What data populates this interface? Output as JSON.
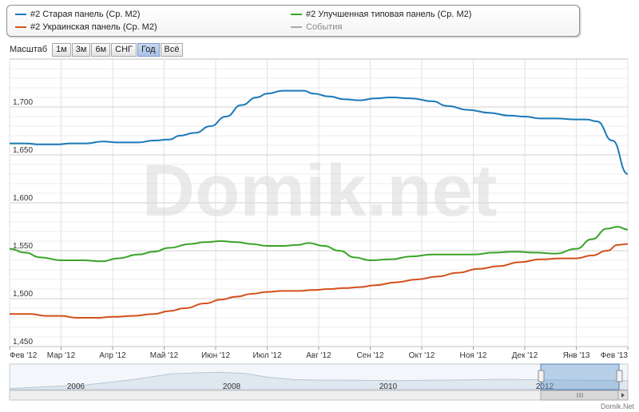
{
  "legend": {
    "items": [
      {
        "label": "#2 Старая панель (Ср. М2)",
        "color": "#1a7ab8"
      },
      {
        "label": "#2 Украинская панель (Ср. М2)",
        "color": "#d4501c"
      },
      {
        "label": "#2 Улучшенная типовая панель (Ср. М2)",
        "color": "#3aa328"
      },
      {
        "label": "События",
        "color": "#aaaaaa"
      }
    ]
  },
  "zoom": {
    "label": "Масштаб",
    "buttons": [
      "1м",
      "3м",
      "6м",
      "СНГ",
      "Год",
      "Всё"
    ],
    "active": "Год"
  },
  "watermark": "Domik.net",
  "credit": "Domik.Net",
  "chart_data": {
    "type": "line",
    "ylim": [
      1450,
      1750
    ],
    "yticks": [
      1450,
      1500,
      1550,
      1600,
      1650,
      1700
    ],
    "ytick_labels": [
      "1,450",
      "1,500",
      "1,550",
      "1,600",
      "1,650",
      "1,700"
    ],
    "xlim": [
      0,
      12
    ],
    "xtick_labels": [
      "Фев '12",
      "Мар '12",
      "Апр '12",
      "Май '12",
      "Июн '12",
      "Июл '12",
      "Авг '12",
      "Сен '12",
      "Окт '12",
      "Ноя '12",
      "Дек '12",
      "Янв '13",
      "Фев '13"
    ],
    "series": [
      {
        "name": "#2 Старая панель (Ср. М2)",
        "color": "#1a7ab8",
        "x": [
          0,
          0.3,
          0.6,
          0.9,
          1.2,
          1.5,
          1.8,
          2.1,
          2.5,
          2.8,
          3.1,
          3.3,
          3.6,
          3.9,
          4.2,
          4.5,
          4.8,
          5.0,
          5.3,
          5.5,
          5.7,
          5.9,
          6.2,
          6.5,
          6.8,
          7.1,
          7.4,
          7.8,
          8.2,
          8.5,
          8.9,
          9.3,
          9.7,
          10.0,
          10.3,
          10.6,
          11.0,
          11.2,
          11.4,
          11.7,
          12.0
        ],
        "values": [
          1662,
          1662,
          1661,
          1661,
          1662,
          1662,
          1664,
          1663,
          1663,
          1665,
          1666,
          1670,
          1673,
          1680,
          1690,
          1702,
          1710,
          1714,
          1717,
          1717,
          1717,
          1714,
          1711,
          1708,
          1707,
          1709,
          1710,
          1709,
          1706,
          1701,
          1697,
          1694,
          1691,
          1690,
          1688,
          1688,
          1687,
          1687,
          1685,
          1665,
          1630
        ]
      },
      {
        "name": "#2 Украинская панель (Ср. М2)",
        "color": "#d4501c",
        "x": [
          0,
          0.4,
          0.7,
          1.0,
          1.3,
          1.7,
          2.0,
          2.4,
          2.8,
          3.1,
          3.4,
          3.8,
          4.1,
          4.4,
          4.7,
          5.0,
          5.3,
          5.6,
          5.9,
          6.2,
          6.5,
          6.8,
          7.1,
          7.5,
          7.9,
          8.3,
          8.7,
          9.1,
          9.5,
          9.9,
          10.3,
          10.7,
          11.0,
          11.3,
          11.6,
          11.8,
          12.0
        ],
        "values": [
          1484,
          1484,
          1482,
          1482,
          1480,
          1480,
          1481,
          1482,
          1484,
          1487,
          1490,
          1495,
          1499,
          1502,
          1505,
          1507,
          1508,
          1508,
          1509,
          1510,
          1511,
          1512,
          1514,
          1517,
          1520,
          1523,
          1527,
          1531,
          1534,
          1538,
          1541,
          1542,
          1542,
          1545,
          1550,
          1556,
          1557
        ]
      },
      {
        "name": "#2 Улучшенная типовая панель (Ср. М2)",
        "color": "#3aa328",
        "x": [
          0,
          0.3,
          0.6,
          1.0,
          1.4,
          1.8,
          2.1,
          2.5,
          2.8,
          3.1,
          3.5,
          3.8,
          4.1,
          4.4,
          4.7,
          5.0,
          5.3,
          5.6,
          5.8,
          6.1,
          6.4,
          6.7,
          7.0,
          7.4,
          7.8,
          8.2,
          8.6,
          9.0,
          9.4,
          9.8,
          10.2,
          10.6,
          11.0,
          11.3,
          11.6,
          11.8,
          12.0
        ],
        "values": [
          1552,
          1548,
          1543,
          1540,
          1540,
          1539,
          1542,
          1546,
          1549,
          1553,
          1557,
          1559,
          1560,
          1559,
          1557,
          1555,
          1555,
          1556,
          1558,
          1555,
          1550,
          1543,
          1540,
          1541,
          1544,
          1546,
          1546,
          1546,
          1548,
          1549,
          1548,
          1547,
          1552,
          1562,
          1573,
          1575,
          1572
        ]
      }
    ],
    "navigator": {
      "xtick_labels": [
        "2006",
        "2008",
        "2010",
        "2012"
      ]
    }
  }
}
